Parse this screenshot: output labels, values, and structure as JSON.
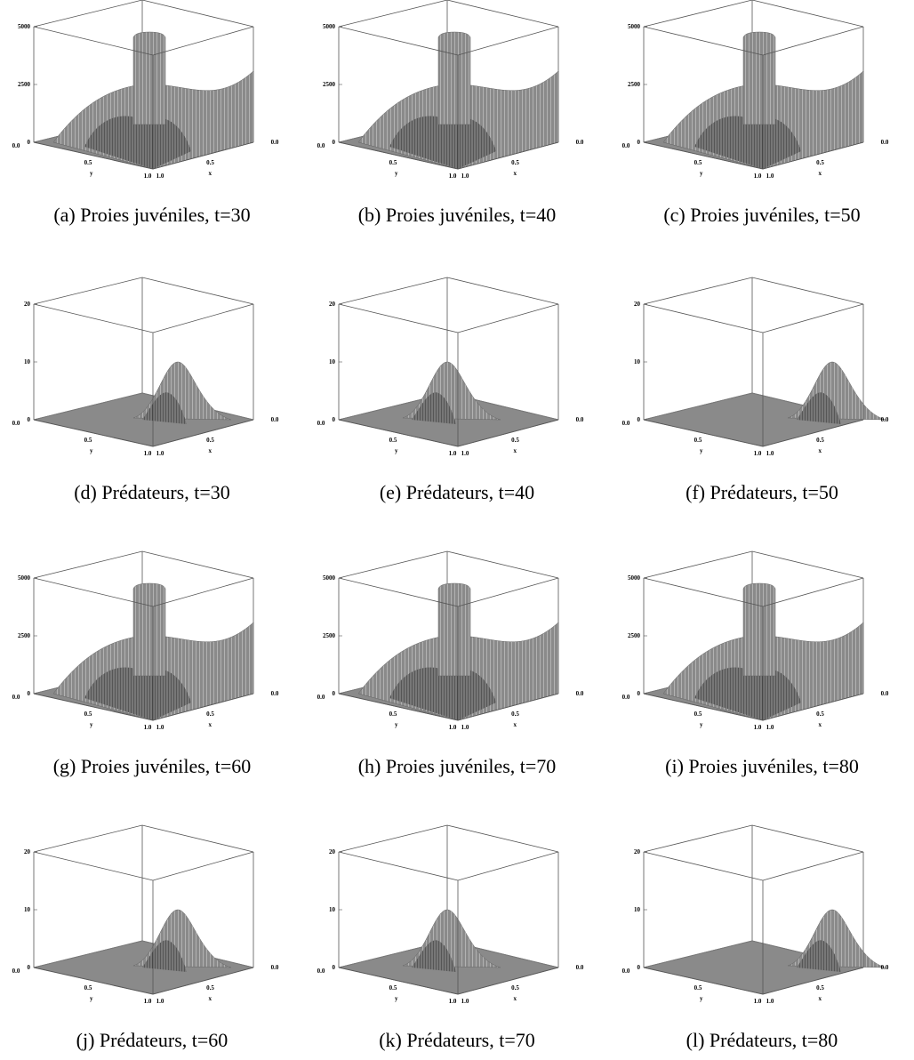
{
  "axis": {
    "ticks": [
      "0.0",
      "0.5",
      "1.0"
    ],
    "x_label": "x",
    "y_label": "y"
  },
  "panels": [
    {
      "caption": "(a)  Proies juvéniles, t=30",
      "zticks": [
        "0",
        "2500",
        "5000"
      ]
    },
    {
      "caption": "(b)  Proies juvéniles, t=40",
      "zticks": [
        "0",
        "2500",
        "5000"
      ]
    },
    {
      "caption": "(c)  Proies juvéniles, t=50",
      "zticks": [
        "0",
        "2500",
        "5000"
      ]
    },
    {
      "caption": "(d)  Prédateurs, t=30",
      "zticks": [
        "0",
        "10",
        "20"
      ]
    },
    {
      "caption": "(e)  Prédateurs, t=40",
      "zticks": [
        "0",
        "10",
        "20"
      ]
    },
    {
      "caption": "(f)  Prédateurs, t=50",
      "zticks": [
        "0",
        "10",
        "20"
      ]
    },
    {
      "caption": "(g)  Proies juvéniles, t=60",
      "zticks": [
        "0",
        "2500",
        "5000"
      ]
    },
    {
      "caption": "(h)  Proies juvéniles, t=70",
      "zticks": [
        "0",
        "2500",
        "5000"
      ]
    },
    {
      "caption": "(i)  Proies juvéniles, t=80",
      "zticks": [
        "0",
        "2500",
        "5000"
      ]
    },
    {
      "caption": "(j)  Prédateurs, t=60",
      "zticks": [
        "0",
        "10",
        "20"
      ]
    },
    {
      "caption": "(k)  Prédateurs, t=70",
      "zticks": [
        "0",
        "10",
        "20"
      ]
    },
    {
      "caption": "(l)  Prédateurs, t=80",
      "zticks": [
        "0",
        "10",
        "20"
      ]
    }
  ]
}
